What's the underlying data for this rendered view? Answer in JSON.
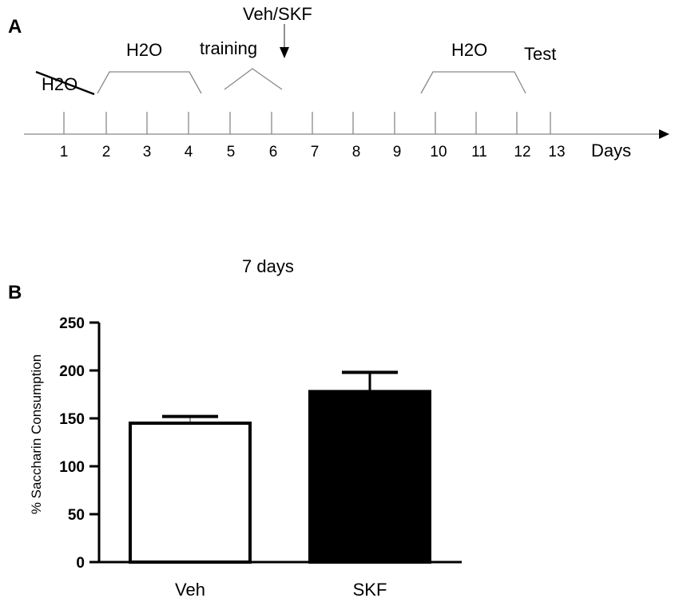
{
  "panels": {
    "a_label": "A",
    "b_label": "B"
  },
  "timeline": {
    "days": [
      "1",
      "2",
      "3",
      "4",
      "5",
      "6",
      "7",
      "8",
      "9",
      "10",
      "11",
      "12",
      "13"
    ],
    "axis_label": "Days",
    "water_crossed_label": "H2O",
    "water_label_1": "H2O",
    "training_label": "training",
    "injection_label": "Veh/SKF",
    "water_label_2": "H2O",
    "test_label": "Test"
  },
  "chart_data": {
    "type": "bar",
    "title": "7 days",
    "categories": [
      "Veh",
      "SKF"
    ],
    "values": [
      145,
      178
    ],
    "errors": [
      7,
      20
    ],
    "colors": [
      "#ffffff",
      "#000000"
    ],
    "ylabel": "% Saccharin Consumption",
    "xlabel": "",
    "ylim": [
      0,
      250
    ],
    "yticks": [
      "0",
      "50",
      "100",
      "150",
      "200",
      "250"
    ],
    "grid": false
  }
}
